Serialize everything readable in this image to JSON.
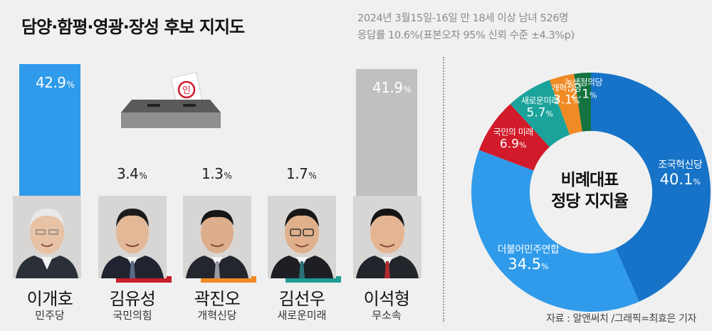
{
  "header": {
    "title": "담양·함평·영광·장성 후보 지지도",
    "meta_line1": "2024년 3월15일-16일 만 18세 이상 남녀 526명",
    "meta_line2": "응답률 10.6%(표본오차 95% 신뢰 수준 ±4.3%p)"
  },
  "footer": {
    "source": "자료 : 알앤써치  /그래픽=최효은 기자"
  },
  "chart_data": [
    {
      "type": "bar",
      "categories": [
        "이개호",
        "김유성",
        "곽진오",
        "김선우",
        "이석형"
      ],
      "parties": [
        "민주당",
        "국민의힘",
        "개혁신당",
        "새로운미래",
        "무소속"
      ],
      "values": [
        42.9,
        3.4,
        1.3,
        1.7,
        41.9
      ],
      "value_labels": [
        "42.9",
        "3.4",
        "1.3",
        "1.7",
        "41.9"
      ],
      "unit": "%",
      "colors": [
        "#2f9bea",
        "#c81e2b",
        "#f08a24",
        "#1d9c94",
        "#c0c0c0"
      ]
    },
    {
      "type": "pie",
      "style": "donut",
      "center_label": [
        "비례대표",
        "정당 지지율"
      ],
      "unit": "%",
      "slices": [
        {
          "name": "조국혁신당",
          "value": 40.1,
          "label": "40.1",
          "color": "#1673c7"
        },
        {
          "name": "더불어민주연합",
          "value": 34.5,
          "label": "34.5",
          "color": "#2f9bea"
        },
        {
          "name": "국민의 미래",
          "value": 6.9,
          "label": "6.9",
          "color": "#d11a2a"
        },
        {
          "name": "새로운미래",
          "value": 5.7,
          "label": "5.7",
          "color": "#1ba39b"
        },
        {
          "name": "개혁신당",
          "value": 3.1,
          "label": "3.1",
          "color": "#f08a24"
        },
        {
          "name": "녹색정의당",
          "value": 2.1,
          "label": "2.1",
          "color": "#14733f"
        }
      ]
    }
  ]
}
